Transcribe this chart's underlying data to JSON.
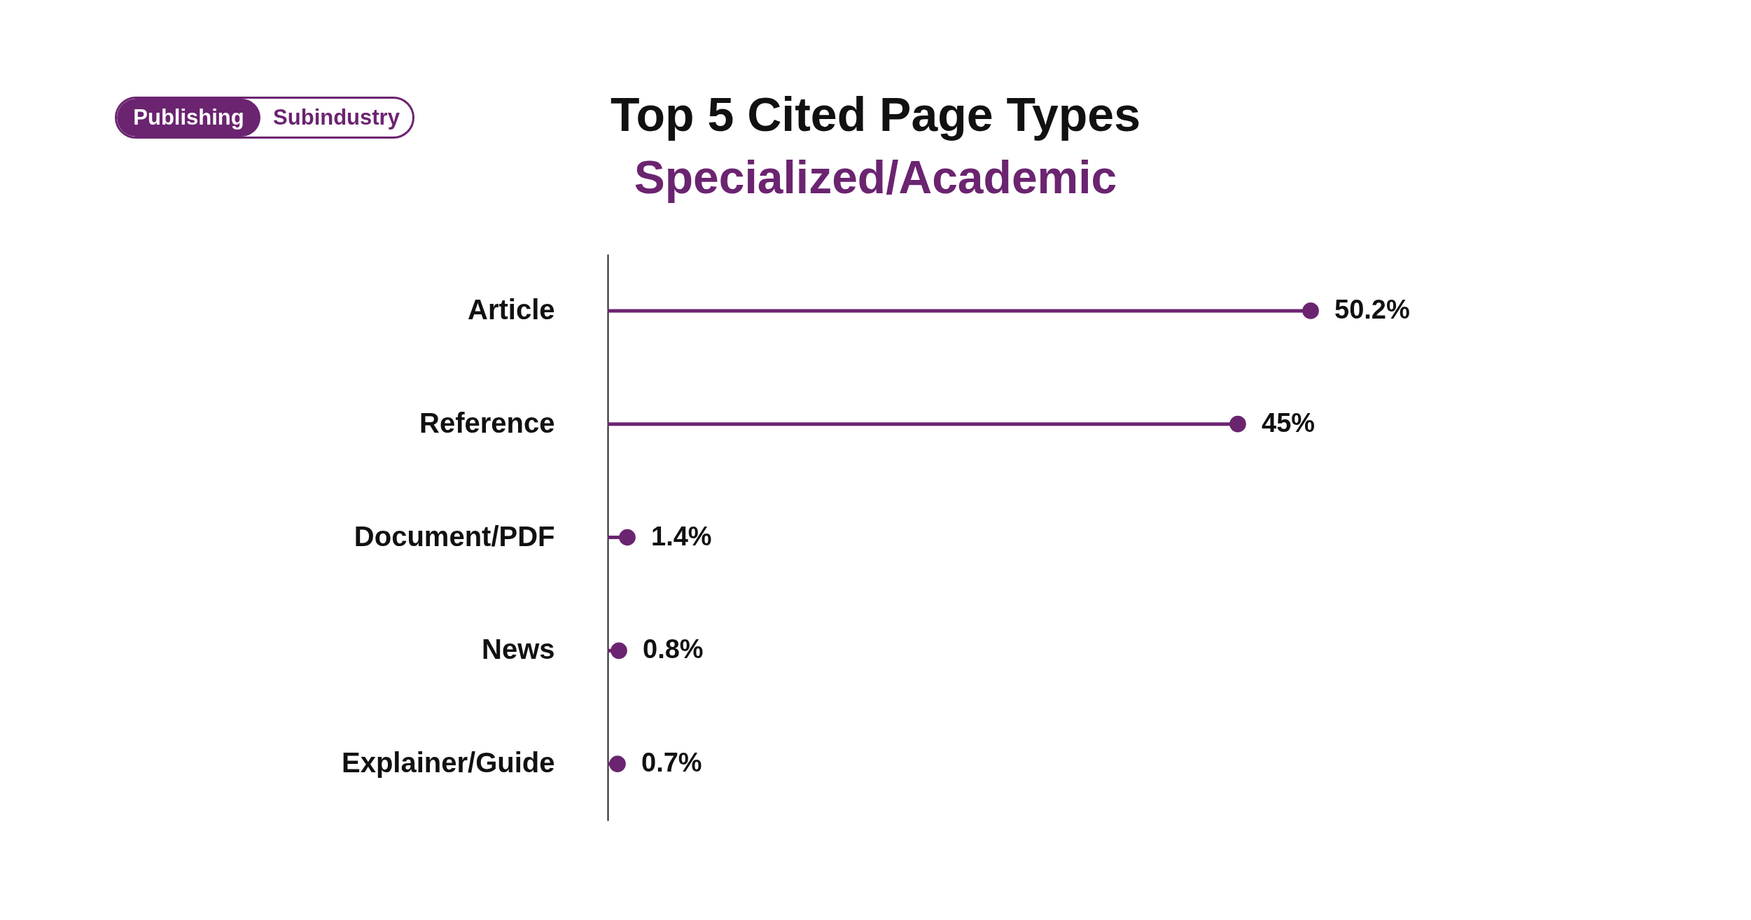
{
  "chart_data": {
    "type": "lollipop",
    "title": "Top 5 Cited Page Types",
    "subtitle": "Specialized/Academic",
    "annotations": [
      "Publishing",
      "Subindustry"
    ],
    "categories": [
      "Article",
      "Reference",
      "Document/PDF",
      "News",
      "Explainer/Guide"
    ],
    "values": [
      50.2,
      45,
      1.4,
      0.8,
      0.7
    ],
    "value_labels": [
      "50.2%",
      "45%",
      "1.4%",
      "0.8%",
      "0.7%"
    ],
    "color": "#6b2470",
    "orientation": "horizontal"
  }
}
